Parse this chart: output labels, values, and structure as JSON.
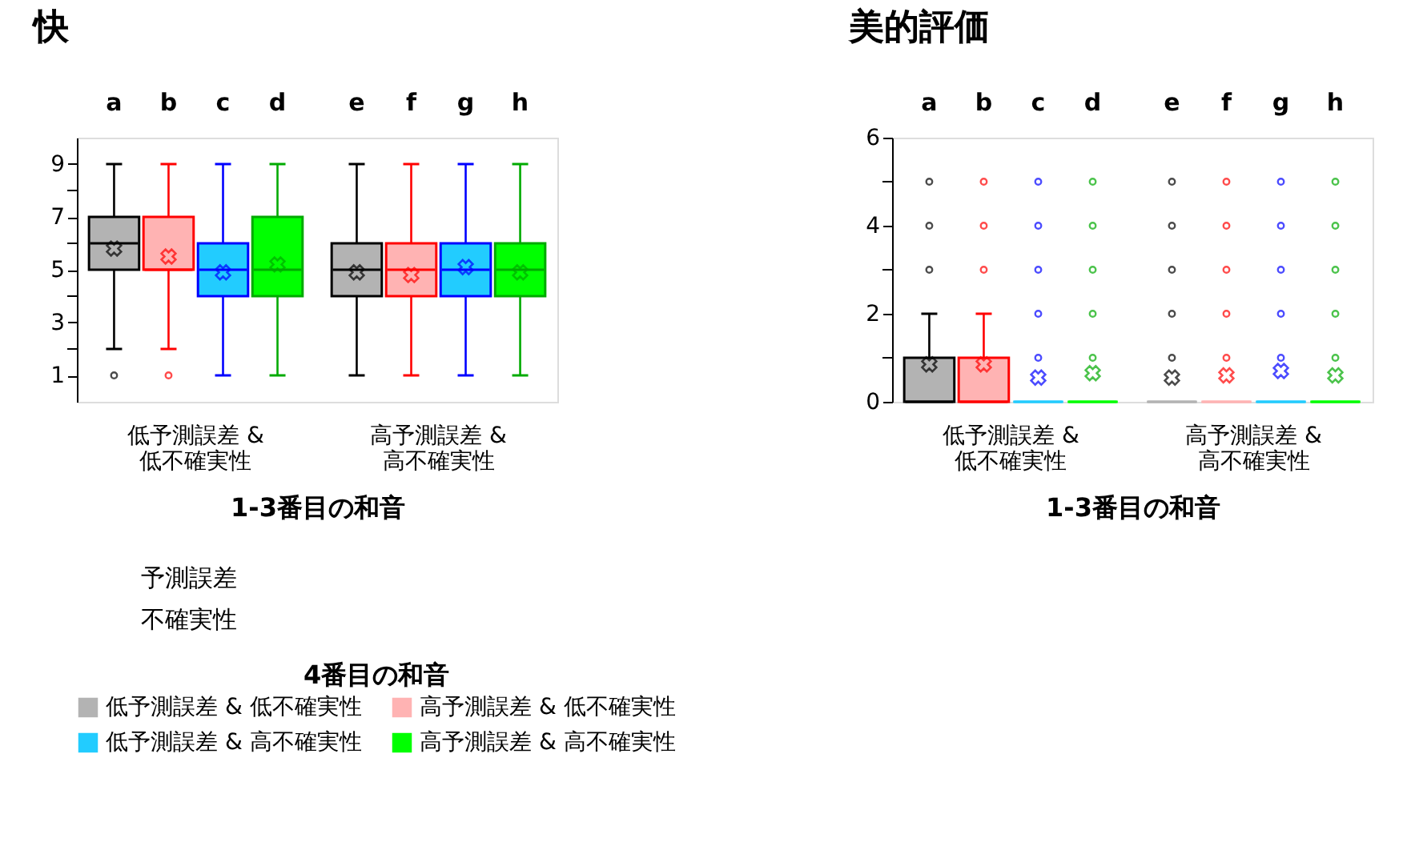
{
  "chart_data": [
    {
      "type": "box",
      "title": "快",
      "xlabel": "1-3番目の和音",
      "categories": [
        "低予測誤差 &\n低不確実性",
        "高予測誤差 &\n高不確実性"
      ],
      "ylim": [
        0,
        10
      ],
      "yticks": [
        1,
        {
          "value": 2,
          "label": null
        },
        3,
        {
          "value": 4,
          "label": null
        },
        5,
        {
          "value": 6,
          "label": null
        },
        7,
        {
          "value": 8,
          "label": null
        },
        9
      ],
      "annotations": [
        "a",
        "b",
        "c",
        "d",
        "e",
        "f",
        "g",
        "h",
        "予測誤差",
        "不確実性"
      ],
      "grid": false,
      "legend": "bottom",
      "legend_title": "4番目の和音",
      "series": [
        {
          "name": "低予測誤差 & 低不確実性",
          "color": "#b3b3b3",
          "boxes": [
            {
              "low": 2,
              "q1": 5,
              "median": 6,
              "q3": 7,
              "high": 9,
              "mean": 5.8,
              "outliers": [
                1
              ]
            },
            {
              "low": 1,
              "q1": 4,
              "median": 5,
              "q3": 6,
              "high": 9,
              "mean": 4.9
            }
          ]
        },
        {
          "name": "高予測誤差 & 低不確実性",
          "color": "#ffb3b3",
          "boxes": [
            {
              "low": 2,
              "q1": 5,
              "median": 5,
              "q3": 7,
              "high": 9,
              "mean": 5.5,
              "outliers": [
                1
              ]
            },
            {
              "low": 1,
              "q1": 4,
              "median": 5,
              "q3": 6,
              "high": 9,
              "mean": 4.8
            }
          ]
        },
        {
          "name": "低予測誤差 & 高不確実性",
          "color": "#22ccff",
          "boxes": [
            {
              "low": 1,
              "q1": 4,
              "median": 5,
              "q3": 6,
              "high": 9,
              "mean": 4.9
            },
            {
              "low": 1,
              "q1": 4,
              "median": 5,
              "q3": 6,
              "high": 9,
              "mean": 5.1
            }
          ]
        },
        {
          "name": "高予測誤差 & 高不確実性",
          "color": "#00ff00",
          "boxes": [
            {
              "low": 1,
              "q1": 4,
              "median": 5,
              "q3": 7,
              "high": 9,
              "mean": 5.2
            },
            {
              "low": 1,
              "q1": 4,
              "median": 5,
              "q3": 6,
              "high": 9,
              "mean": 4.9
            }
          ]
        }
      ]
    },
    {
      "type": "box",
      "title": "美的評価",
      "xlabel": "1-3番目の和音",
      "categories": [
        "低予測誤差 &\n低不確実性",
        "高予測誤差 &\n高不確実性"
      ],
      "ylim": [
        0,
        6
      ],
      "yticks": [
        0,
        {
          "value": 1,
          "label": null
        },
        2,
        {
          "value": 3,
          "label": null
        },
        4,
        {
          "value": 5,
          "label": null
        },
        6
      ],
      "annotations": [
        "a",
        "b",
        "c",
        "d",
        "e",
        "f",
        "g",
        "h"
      ],
      "grid": false,
      "series": [
        {
          "name": "低予測誤差 & 低不確実性",
          "color": "#b3b3b3",
          "boxes": [
            {
              "low": 0,
              "q1": 0,
              "median": 0,
              "q3": 1,
              "high": 2,
              "mean": 0.85,
              "outliers": [
                3,
                4,
                5
              ]
            },
            {
              "low": 0,
              "q1": 0,
              "median": 0,
              "q3": 0,
              "high": 0,
              "mean": 0.55,
              "outliers": [
                1,
                2,
                3,
                4,
                5
              ]
            }
          ]
        },
        {
          "name": "高予測誤差 & 低不確実性",
          "color": "#ffb3b3",
          "boxes": [
            {
              "low": 0,
              "q1": 0,
              "median": 0,
              "q3": 1,
              "high": 2,
              "mean": 0.85,
              "outliers": [
                3,
                4,
                5
              ]
            },
            {
              "low": 0,
              "q1": 0,
              "median": 0,
              "q3": 0,
              "high": 0,
              "mean": 0.6,
              "outliers": [
                1,
                2,
                3,
                4,
                5
              ]
            }
          ]
        },
        {
          "name": "低予測誤差 & 高不確実性",
          "color": "#22ccff",
          "boxes": [
            {
              "low": 0,
              "q1": 0,
              "median": 0,
              "q3": 0,
              "high": 0,
              "mean": 0.55,
              "outliers": [
                1,
                2,
                3,
                4,
                5
              ]
            },
            {
              "low": 0,
              "q1": 0,
              "median": 0,
              "q3": 0,
              "high": 0,
              "mean": 0.7,
              "outliers": [
                1,
                2,
                3,
                4,
                5
              ]
            }
          ]
        },
        {
          "name": "高予測誤差 & 高不確実性",
          "color": "#00ff00",
          "boxes": [
            {
              "low": 0,
              "q1": 0,
              "median": 0,
              "q3": 0,
              "high": 0,
              "mean": 0.65,
              "outliers": [
                1,
                2,
                3,
                4,
                5
              ]
            },
            {
              "low": 0,
              "q1": 0,
              "median": 0,
              "q3": 0,
              "high": 0,
              "mean": 0.6,
              "outliers": [
                1,
                2,
                3,
                4,
                5
              ]
            }
          ]
        }
      ]
    }
  ]
}
